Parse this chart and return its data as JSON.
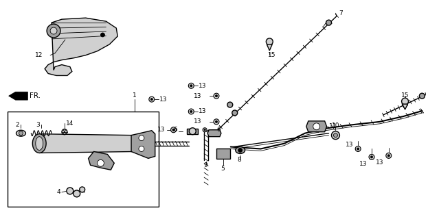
{
  "bg_color": "#ffffff",
  "fig_width": 6.23,
  "fig_height": 3.2,
  "dpi": 100,
  "label_fontsize": 6.5,
  "lw_thin": 0.6,
  "lw_med": 1.0,
  "lw_thick": 1.5,
  "gray_light": "#d0d0d0",
  "gray_mid": "#a0a0a0",
  "gray_dark": "#606060",
  "black": "#000000"
}
